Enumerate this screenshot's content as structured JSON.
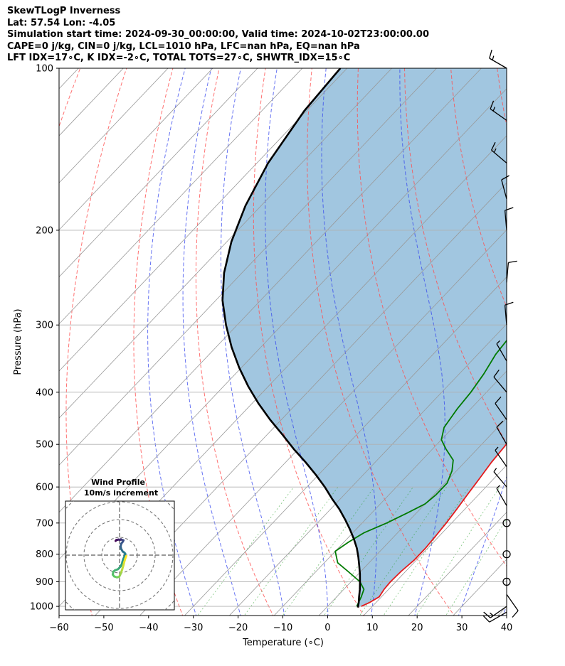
{
  "header": {
    "line1": "SkewTLogP Inverness",
    "line2": "Lat: 57.54   Lon: -4.05",
    "line3": "Simulation start time: 2024-09-30_00:00:00, Valid time: 2024-10-02T23:00:00.00",
    "line4": "CAPE=0 j/kg, CIN=0 j/kg, LCL=1010 hPa, LFC=nan hPa, EQ=nan hPa",
    "line5": "LFT IDX=17∘C, K IDX=-2∘C, TOTAL TOTS=27∘C, SHWTR_IDX=15∘C"
  },
  "chart_data": {
    "type": "skewt",
    "xlabel": "Temperature (∘C)",
    "ylabel": "Pressure (hPa)",
    "xlim": [
      -60,
      40
    ],
    "ylim": [
      1040,
      100
    ],
    "x_ticks": [
      -60,
      -50,
      -40,
      -30,
      -20,
      -10,
      0,
      10,
      20,
      30,
      40
    ],
    "y_ticks": [
      100,
      200,
      300,
      400,
      500,
      600,
      700,
      800,
      900,
      1000
    ],
    "grid": true,
    "series": [
      {
        "color": "#e41a1c",
        "points": [
          [
            7.5,
            1000
          ],
          [
            8.5,
            985
          ],
          [
            9.5,
            960
          ],
          [
            9,
            930
          ],
          [
            8.8,
            900
          ],
          [
            9,
            860
          ],
          [
            9.5,
            820
          ],
          [
            9.5,
            780
          ],
          [
            9.2,
            740
          ],
          [
            8.8,
            700
          ],
          [
            8.2,
            660
          ],
          [
            7.5,
            620
          ],
          [
            6.8,
            580
          ],
          [
            6,
            540
          ],
          [
            5.5,
            500
          ],
          [
            4.5,
            470
          ],
          [
            3.2,
            430
          ],
          [
            1.5,
            390
          ],
          [
            0.5,
            360
          ],
          [
            -1.5,
            340
          ],
          [
            -4,
            315
          ],
          [
            -6.5,
            290
          ],
          [
            -9.5,
            265
          ],
          [
            -12,
            245
          ],
          [
            -14,
            225
          ],
          [
            -15,
            210
          ],
          [
            -15.5,
            200
          ],
          [
            -14,
            190
          ],
          [
            -11.5,
            180
          ],
          [
            -8.5,
            170
          ],
          [
            -6,
            165
          ],
          [
            -3,
            160
          ],
          [
            -1,
            155
          ],
          [
            1,
            150
          ],
          [
            3,
            145
          ],
          [
            4.5,
            140
          ],
          [
            5.5,
            134
          ],
          [
            6.5,
            128
          ],
          [
            7.5,
            121
          ],
          [
            8.5,
            114
          ],
          [
            9.5,
            108
          ],
          [
            10.5,
            103
          ],
          [
            11.5,
            100
          ]
        ]
      },
      {
        "color": "#007a00",
        "points": [
          [
            6.5,
            1000
          ],
          [
            5.5,
            960
          ],
          [
            4.5,
            930
          ],
          [
            2,
            900
          ],
          [
            -3,
            860
          ],
          [
            -7,
            830
          ],
          [
            -10,
            790
          ],
          [
            -9,
            760
          ],
          [
            -7.5,
            730
          ],
          [
            -4.5,
            700
          ],
          [
            -2,
            670
          ],
          [
            0,
            645
          ],
          [
            0.5,
            620
          ],
          [
            0.5,
            590
          ],
          [
            -1,
            560
          ],
          [
            -3,
            535
          ],
          [
            -7,
            510
          ],
          [
            -10,
            490
          ],
          [
            -12,
            465
          ],
          [
            -13,
            430
          ],
          [
            -13.5,
            400
          ],
          [
            -14.5,
            370
          ],
          [
            -16,
            340
          ],
          [
            -16.5,
            320
          ],
          [
            -17,
            300
          ],
          [
            -18.5,
            285
          ],
          [
            -20.5,
            270
          ],
          [
            -21,
            255
          ],
          [
            -22.5,
            240
          ],
          [
            -23.5,
            225
          ],
          [
            -25,
            210
          ],
          [
            -26.5,
            200
          ],
          [
            -26.5,
            192
          ],
          [
            -26,
            185
          ],
          [
            -26,
            178
          ],
          [
            -26.5,
            172
          ],
          [
            -27.5,
            166
          ],
          [
            -29,
            160
          ],
          [
            -31,
            153
          ],
          [
            -33,
            146
          ],
          [
            -34.5,
            140
          ],
          [
            -36,
            136
          ],
          [
            -36,
            130
          ],
          [
            -36,
            122
          ],
          [
            -36,
            114
          ],
          [
            -35.5,
            107
          ],
          [
            -35,
            100
          ]
        ]
      },
      {
        "color": "#000000",
        "points": [
          [
            7,
            1005
          ],
          [
            6.2,
            985
          ],
          [
            5,
            960
          ],
          [
            3.6,
            930
          ],
          [
            2,
            900
          ],
          [
            0.3,
            870
          ],
          [
            -1.6,
            840
          ],
          [
            -3.6,
            810
          ],
          [
            -5.8,
            780
          ],
          [
            -8.4,
            750
          ],
          [
            -11.3,
            720
          ],
          [
            -14.5,
            690
          ],
          [
            -18,
            660
          ],
          [
            -22,
            630
          ],
          [
            -26,
            600
          ],
          [
            -30.5,
            570
          ],
          [
            -35.5,
            540
          ],
          [
            -41,
            510
          ],
          [
            -46.5,
            480
          ],
          [
            -52.5,
            450
          ],
          [
            -58.5,
            420
          ],
          [
            -64.5,
            390
          ],
          [
            -70.5,
            360
          ],
          [
            -76.5,
            330
          ],
          [
            -82.5,
            300
          ],
          [
            -88.5,
            270
          ],
          [
            -94,
            240
          ],
          [
            -99,
            210
          ],
          [
            -103.5,
            180
          ],
          [
            -107.5,
            150
          ],
          [
            -110.5,
            120
          ],
          [
            -111.5,
            100
          ]
        ]
      }
    ],
    "barbs": [
      {
        "p": 100,
        "speed": 15,
        "dir": 300
      },
      {
        "p": 125,
        "speed": 15,
        "dir": 305
      },
      {
        "p": 150,
        "speed": 15,
        "dir": 310
      },
      {
        "p": 175,
        "speed": 10,
        "dir": 345
      },
      {
        "p": 200,
        "speed": 10,
        "dir": 355
      },
      {
        "p": 250,
        "speed": 10,
        "dir": 5
      },
      {
        "p": 300,
        "speed": 10,
        "dir": 355
      },
      {
        "p": 350,
        "speed": 5,
        "dir": 330
      },
      {
        "p": 400,
        "speed": 10,
        "dir": 320
      },
      {
        "p": 450,
        "speed": 10,
        "dir": 325
      },
      {
        "p": 500,
        "speed": 10,
        "dir": 330
      },
      {
        "p": 550,
        "speed": 5,
        "dir": 325
      },
      {
        "p": 600,
        "speed": 5,
        "dir": 320
      },
      {
        "p": 650,
        "speed": 5,
        "dir": 330
      },
      {
        "p": 700,
        "speed": 0,
        "dir": 0
      },
      {
        "p": 800,
        "speed": 0,
        "dir": 0
      },
      {
        "p": 900,
        "speed": 0,
        "dir": 0
      },
      {
        "p": 950,
        "speed": 10,
        "dir": 145
      },
      {
        "p": 1000,
        "speed": 15,
        "dir": 235
      },
      {
        "p": 1025,
        "speed": 10,
        "dir": 240
      }
    ],
    "hodograph": {
      "title": "Wind Profile",
      "subtitle": "10m/s increment",
      "points": [
        [
          -2.2,
          8
        ],
        [
          -1.8,
          8.5
        ],
        [
          -1.2,
          8.6
        ],
        [
          -0.5,
          8.8
        ],
        [
          0.2,
          8.5
        ],
        [
          0.8,
          8.9
        ],
        [
          1.5,
          8.5
        ],
        [
          2.2,
          8.3
        ],
        [
          1.8,
          7.5
        ],
        [
          1,
          6.5
        ],
        [
          0.6,
          5
        ],
        [
          0.9,
          3.5
        ],
        [
          1.8,
          2
        ],
        [
          2.6,
          1.5
        ],
        [
          3.2,
          0.8
        ],
        [
          2.8,
          -0.5
        ],
        [
          2.2,
          -2
        ],
        [
          1.7,
          -3.5
        ],
        [
          1.3,
          -5
        ],
        [
          0.5,
          -6.5
        ],
        [
          -1,
          -8
        ],
        [
          -2.5,
          -8.5
        ],
        [
          -3.5,
          -9.3
        ],
        [
          -3.8,
          -11
        ],
        [
          -3,
          -12
        ],
        [
          -1.5,
          -12.5
        ],
        [
          -0.2,
          -12.2
        ],
        [
          0.4,
          -11
        ],
        [
          1,
          -9.5
        ],
        [
          1.5,
          -8
        ],
        [
          2.1,
          -6
        ],
        [
          2.6,
          -4
        ],
        [
          3.2,
          -2
        ],
        [
          3.8,
          -0.5
        ]
      ]
    }
  }
}
